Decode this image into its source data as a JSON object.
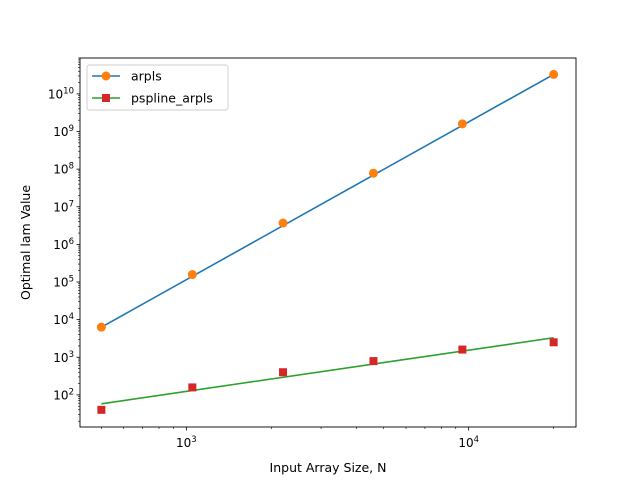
{
  "chart_data": {
    "type": "line",
    "xlabel": "Input Array Size, N",
    "ylabel": "Optimal lam Value",
    "xscale": "log",
    "yscale": "log",
    "xlim": [
      420,
      24000
    ],
    "ylim": [
      14,
      90000000000
    ],
    "grid": false,
    "legend_location": "top-left",
    "x_major_ticks": [
      {
        "value": 1000,
        "base": "10",
        "exp": "3"
      },
      {
        "value": 10000,
        "base": "10",
        "exp": "4"
      }
    ],
    "y_major_ticks": [
      {
        "value": 100,
        "base": "10",
        "exp": "2"
      },
      {
        "value": 1000,
        "base": "10",
        "exp": "3"
      },
      {
        "value": 10000,
        "base": "10",
        "exp": "4"
      },
      {
        "value": 100000,
        "base": "10",
        "exp": "5"
      },
      {
        "value": 1000000,
        "base": "10",
        "exp": "6"
      },
      {
        "value": 10000000,
        "base": "10",
        "exp": "7"
      },
      {
        "value": 100000000,
        "base": "10",
        "exp": "8"
      },
      {
        "value": 1000000000,
        "base": "10",
        "exp": "9"
      },
      {
        "value": 10000000000,
        "base": "10",
        "exp": "10"
      }
    ],
    "series": [
      {
        "name": "arpls",
        "line_color": "#1f77b4",
        "marker_color": "#ff7f0e",
        "marker": "circle",
        "points_x": [
          500,
          1050,
          2200,
          4600,
          9500,
          20000
        ],
        "points_y": [
          6300,
          158000,
          3700000,
          78000000,
          1600000000,
          33000000000
        ],
        "fit_x": [
          500,
          20000
        ],
        "fit_y": [
          6300,
          33000000000
        ]
      },
      {
        "name": "pspline_arpls",
        "line_color": "#2ca02c",
        "marker_color": "#d62728",
        "marker": "square",
        "points_x": [
          500,
          1050,
          2200,
          4600,
          9500,
          20000
        ],
        "points_y": [
          40,
          158,
          400,
          790,
          1600,
          2500
        ],
        "fit_x": [
          500,
          20000
        ],
        "fit_y": [
          58,
          3300
        ]
      }
    ]
  }
}
